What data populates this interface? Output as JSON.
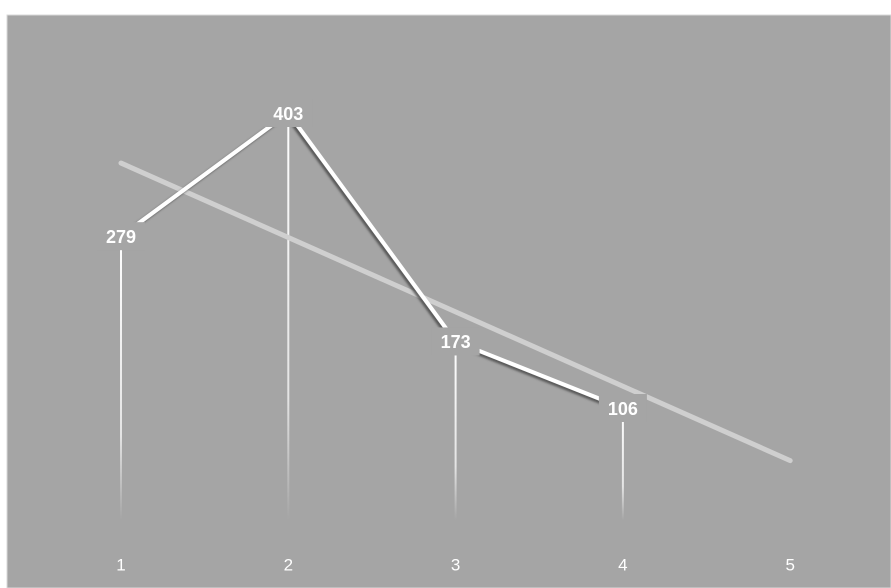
{
  "chart_data": {
    "type": "line",
    "categories": [
      "1",
      "2",
      "3",
      "4",
      "5"
    ],
    "values": [
      279,
      403,
      173,
      106,
      null
    ],
    "color": "#ffffff",
    "trendline": {
      "type": "linear",
      "color": "#cfcfcf"
    },
    "drop_lines": true,
    "data_labels": true
  }
}
